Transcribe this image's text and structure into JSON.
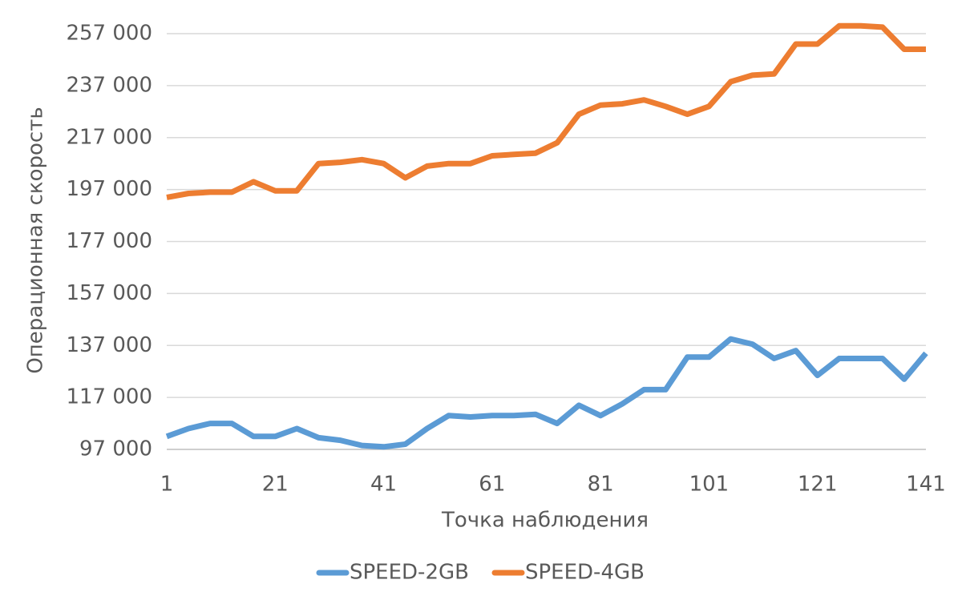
{
  "chart_data": {
    "type": "line",
    "x_label": "Точка наблюдения",
    "y_label": "Операционная скорость",
    "x": [
      1,
      5,
      9,
      13,
      17,
      21,
      25,
      29,
      33,
      37,
      41,
      45,
      49,
      53,
      57,
      61,
      65,
      69,
      73,
      77,
      81,
      85,
      89,
      93,
      97,
      101,
      105,
      109,
      113,
      117,
      121,
      125,
      129,
      133,
      137,
      141
    ],
    "series": [
      {
        "name": "SPEED-2GB",
        "color": "#5b9bd5",
        "values": [
          102000,
          105000,
          107000,
          107000,
          102000,
          102000,
          105000,
          101500,
          100500,
          98500,
          98000,
          99000,
          105000,
          110000,
          109500,
          110000,
          110000,
          110500,
          107000,
          114000,
          110000,
          114500,
          120000,
          120000,
          132500,
          132500,
          139500,
          137500,
          132000,
          135000,
          125500,
          132000,
          132000,
          132000,
          124000,
          134000
        ]
      },
      {
        "name": "SPEED-4GB",
        "color": "#ed7d31",
        "values": [
          194000,
          195500,
          196000,
          196000,
          200000,
          196500,
          196500,
          207000,
          207500,
          208500,
          207000,
          201500,
          206000,
          207000,
          207000,
          210000,
          210500,
          211000,
          215000,
          226000,
          229500,
          230000,
          231500,
          229000,
          226000,
          229000,
          238500,
          241000,
          241500,
          253000,
          253000,
          260000,
          260000,
          259500,
          251000,
          251000
        ]
      }
    ],
    "xlim": [
      1,
      141
    ],
    "xticks": [
      1,
      21,
      41,
      61,
      81,
      101,
      121,
      141
    ],
    "ylim": [
      97000,
      257000
    ],
    "yticks": [
      {
        "value": 97000,
        "label": "97 000"
      },
      {
        "value": 117000,
        "label": "117 000"
      },
      {
        "value": 137000,
        "label": "137 000"
      },
      {
        "value": 157000,
        "label": "157 000"
      },
      {
        "value": 177000,
        "label": "177 000"
      },
      {
        "value": 197000,
        "label": "197 000"
      },
      {
        "value": 217000,
        "label": "217 000"
      },
      {
        "value": 237000,
        "label": "237 000"
      },
      {
        "value": 257000,
        "label": "257 000"
      }
    ],
    "grid": true,
    "legend": "bottom"
  }
}
